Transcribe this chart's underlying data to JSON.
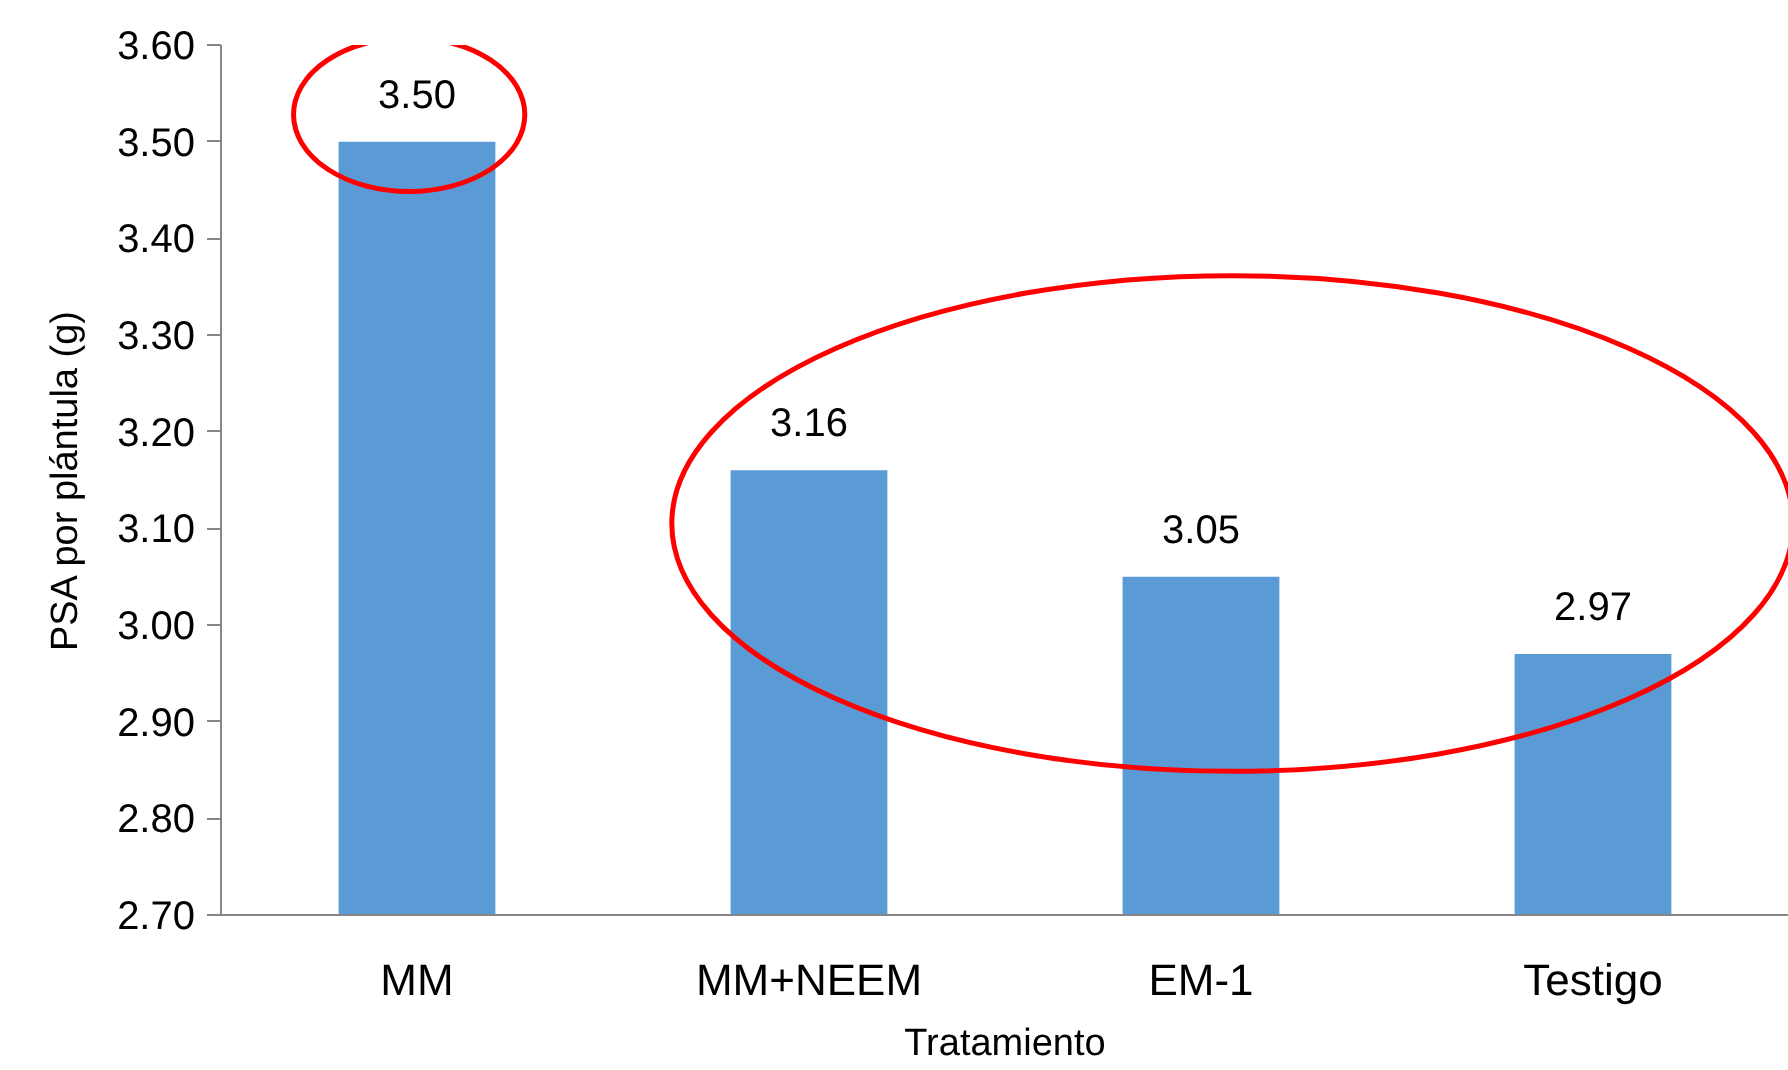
{
  "chart_data": {
    "type": "bar",
    "xlabel": "Tratamiento",
    "ylabel": "PSA por plántula (g)",
    "categories": [
      "MM",
      "MM+NEEM",
      "EM-1",
      "Testigo"
    ],
    "values": [
      3.5,
      3.16,
      3.05,
      2.97
    ],
    "value_labels": [
      "3.50",
      "3.16",
      "3.05",
      "2.97"
    ],
    "color": "#5b9bd5",
    "ylim": [
      2.7,
      3.6
    ],
    "yticks": [
      {
        "value": 2.7,
        "label": "2.70"
      },
      {
        "value": 2.8,
        "label": "2.80"
      },
      {
        "value": 2.9,
        "label": "2.90"
      },
      {
        "value": 3.0,
        "label": "3.00"
      },
      {
        "value": 3.1,
        "label": "3.10"
      },
      {
        "value": 3.2,
        "label": "3.20"
      },
      {
        "value": 3.3,
        "label": "3.30"
      },
      {
        "value": 3.4,
        "label": "3.40"
      },
      {
        "value": 3.5,
        "label": "3.50"
      },
      {
        "value": 3.6,
        "label": "3.60"
      }
    ],
    "grid": false
  }
}
